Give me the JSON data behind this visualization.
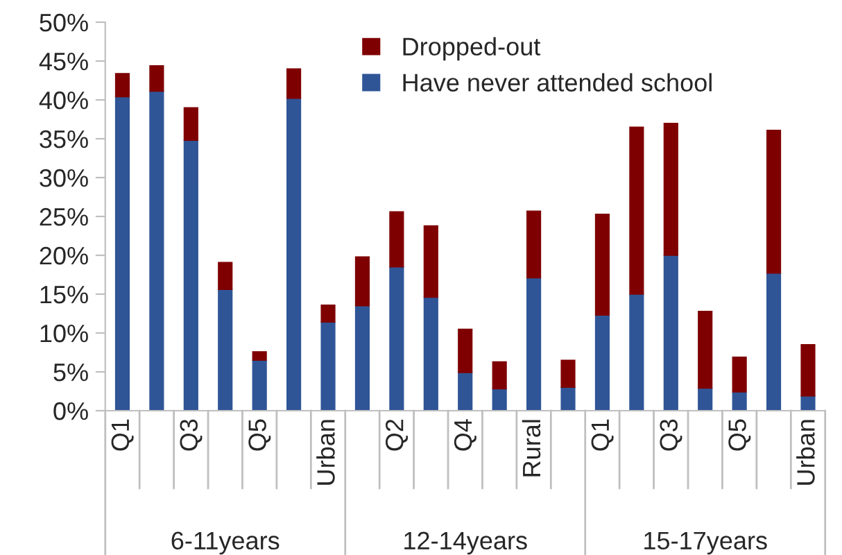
{
  "chart_data": {
    "type": "bar",
    "stacked": true,
    "categories": [
      "Q1",
      null,
      "Q3",
      null,
      "Q5",
      null,
      "Urban",
      null,
      "Q2",
      null,
      "Q4",
      null,
      "Rural",
      null,
      "Q1",
      null,
      "Q3",
      null,
      "Q5",
      null,
      "Urban"
    ],
    "series": [
      {
        "name": "Have never attended school",
        "color": "#2f5597",
        "values": [
          40.4,
          41.1,
          34.8,
          15.6,
          6.5,
          40.2,
          11.4,
          13.5,
          18.5,
          14.6,
          4.9,
          2.8,
          17.1,
          3.0,
          12.3,
          15.0,
          20.0,
          2.9,
          2.4,
          17.7,
          1.9
        ]
      },
      {
        "name": "Dropped-out",
        "color": "#7f0000",
        "values": [
          3.0,
          3.3,
          4.2,
          3.5,
          1.1,
          3.8,
          2.2,
          6.3,
          7.1,
          9.2,
          5.6,
          3.5,
          8.6,
          3.5,
          13.0,
          21.5,
          17.0,
          9.9,
          4.5,
          18.4,
          6.6
        ]
      }
    ],
    "ylim": [
      0,
      50
    ],
    "yticks": [
      {
        "value": 0,
        "label": "0%"
      },
      {
        "value": 5,
        "label": "5%"
      },
      {
        "value": 10,
        "label": "10%"
      },
      {
        "value": 15,
        "label": "15%"
      },
      {
        "value": 20,
        "label": "20%"
      },
      {
        "value": 25,
        "label": "25%"
      },
      {
        "value": 30,
        "label": "30%"
      },
      {
        "value": 35,
        "label": "35%"
      },
      {
        "value": 40,
        "label": "40%"
      },
      {
        "value": 45,
        "label": "45%"
      },
      {
        "value": 50,
        "label": "50%"
      }
    ],
    "annotations": [
      "6-11years",
      "12-14years",
      "15-17years"
    ],
    "legend": "top",
    "grid": false
  }
}
